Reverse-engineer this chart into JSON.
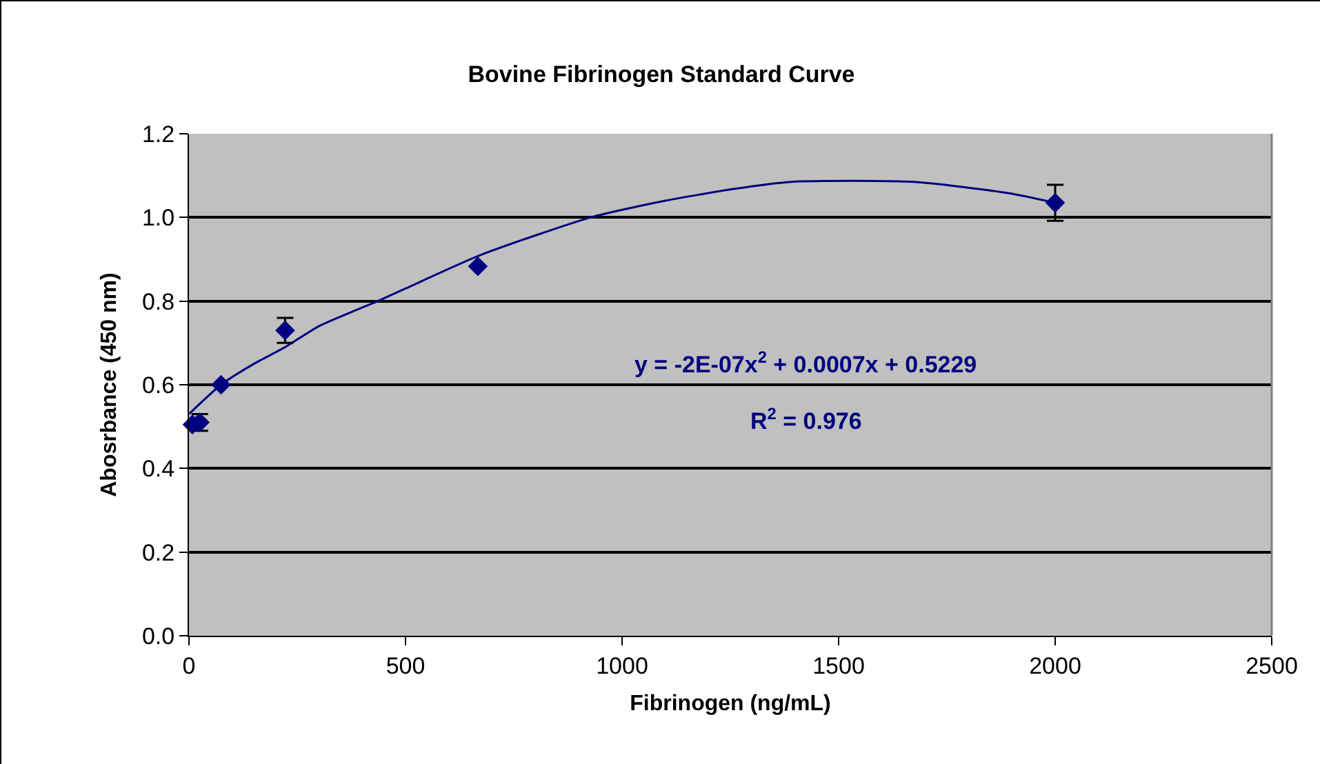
{
  "chart_data": {
    "type": "scatter",
    "title": "Bovine Fibrinogen Standard Curve",
    "xlabel": "Fibrinogen (ng/mL)",
    "ylabel": "Abosrbance (450 nm)",
    "xlim": [
      0,
      2500
    ],
    "xticks": [
      0,
      500,
      1000,
      1500,
      2000,
      2500
    ],
    "ylim": [
      0,
      1.2
    ],
    "yticks": [
      {
        "value": 0,
        "label": "0.0"
      },
      0.2,
      0.4,
      0.6,
      0.8,
      {
        "value": 1,
        "label": "1.0"
      },
      1.2
    ],
    "grid": "y",
    "legend": false,
    "series": [
      {
        "color": "#000080",
        "marker": "diamond",
        "x": [
          8,
          25,
          74,
          222,
          667,
          2000
        ],
        "values": [
          0.505,
          0.51,
          0.6,
          0.73,
          0.883,
          1.035
        ],
        "errors": [
          null,
          0.02,
          null,
          0.03,
          null,
          0.043
        ]
      },
      {
        "type": "line",
        "color": "#000080",
        "marker": "none",
        "line_style": "solid",
        "x": [
          0,
          74,
          150,
          222,
          300,
          436,
          500,
          673,
          927,
          1100,
          1258,
          1391,
          1674,
          1898,
          2000
        ],
        "values": [
          0.53,
          0.6,
          0.65,
          0.69,
          0.74,
          0.8,
          0.83,
          0.91,
          1.0,
          1.04,
          1.068,
          1.085,
          1.085,
          1.057,
          1.035
        ]
      }
    ],
    "annotations": [
      "y = -2E-07x$^{2}$ + 0.0007x + 0.5229",
      "R$^{2}$ = 0.976"
    ]
  }
}
